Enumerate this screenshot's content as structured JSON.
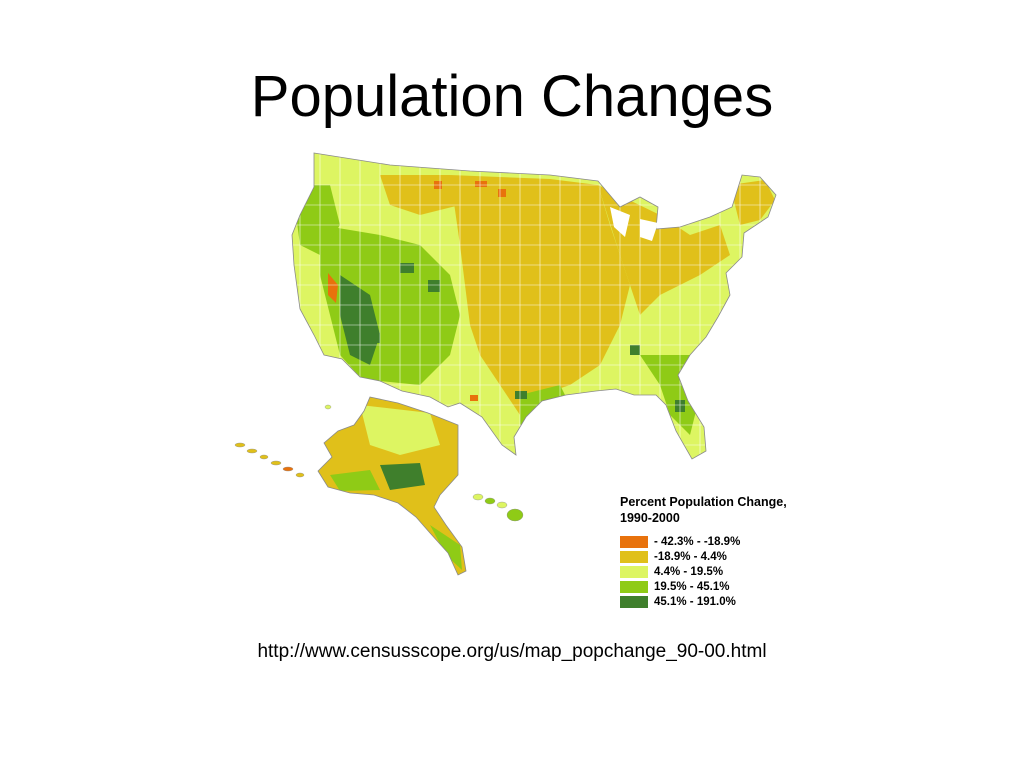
{
  "slide": {
    "title": "Population Changes",
    "source_url": "http://www.censusscope.org/us/map_popchange_90-00.html"
  },
  "legend": {
    "title": "Percent Population Change, 1990-2000",
    "items": [
      {
        "label": "- 42.3% - -18.9%",
        "color": "#e8720c"
      },
      {
        "label": "-18.9% - 4.4%",
        "color": "#e0c01a"
      },
      {
        "label": "4.4% - 19.5%",
        "color": "#ddf562"
      },
      {
        "label": "19.5% - 45.1%",
        "color": "#8fcb16"
      },
      {
        "label": "45.1% - 191.0%",
        "color": "#3f7f2c"
      }
    ]
  },
  "map": {
    "region": "United States counties",
    "colors": {
      "decline_strong": "#e8720c",
      "decline": "#e0c01a",
      "growth_low": "#ddf562",
      "growth_mid": "#8fcb16",
      "growth_high": "#3f7f2c",
      "county_border": "#ffffff"
    }
  }
}
